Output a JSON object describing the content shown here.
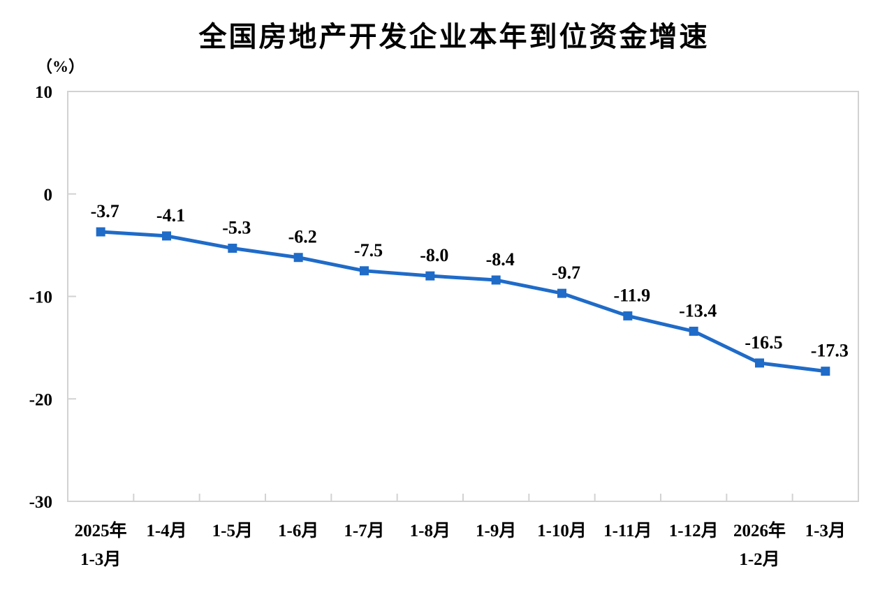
{
  "chart_data": {
    "type": "line",
    "title": "全国房地产开发企业本年到位资金增速",
    "unit_label": "（%）",
    "categories": [
      "2025年\n1-3月",
      "1-4月",
      "1-5月",
      "1-6月",
      "1-7月",
      "1-8月",
      "1-9月",
      "1-10月",
      "1-11月",
      "1-12月",
      "2026年\n1-2月",
      "1-3月"
    ],
    "values": [
      -3.7,
      -4.1,
      -5.3,
      -6.2,
      -7.5,
      -8.0,
      -8.4,
      -9.7,
      -11.9,
      -13.4,
      -16.5,
      -17.3
    ],
    "data_labels": [
      "-3.7",
      "-4.1",
      "-5.3",
      "-6.2",
      "-7.5",
      "-8.0",
      "-8.4",
      "-9.7",
      "-11.9",
      "-13.4",
      "-16.5",
      "-17.3"
    ],
    "ylim": [
      -30,
      10
    ],
    "yticks": [
      10,
      0,
      -10,
      -20,
      -30
    ],
    "grid": false,
    "legend_position": "none",
    "marker": "square",
    "colors": {
      "line": "#1F6BC8",
      "axis": "#D2D2D2",
      "text": "#000000",
      "background": "#FFFFFF"
    }
  }
}
